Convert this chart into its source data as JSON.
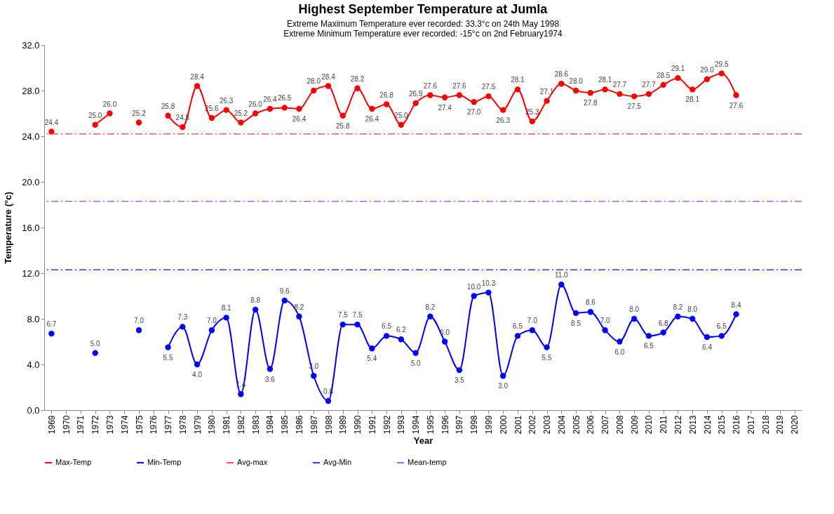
{
  "chart_data": {
    "type": "line",
    "title": "Highest September Temperature at Jumla",
    "subtitle": [
      "Extreme Maximum Temperature ever recorded: 33.3°c on 24th May  1998",
      "Extreme Minimum Temperature ever recorded: -15°c on 2nd February1974"
    ],
    "xlabel": "Year",
    "ylabel": "Temperature (°c)",
    "categories": [
      "1969",
      "1970",
      "1971",
      "1972",
      "1973",
      "1974",
      "1975",
      "1976",
      "1977",
      "1978",
      "1979",
      "1980",
      "1981",
      "1982",
      "1983",
      "1984",
      "1985",
      "1986",
      "1987",
      "1988",
      "1989",
      "1990",
      "1991",
      "1992",
      "1993",
      "1994",
      "1995",
      "1996",
      "1997",
      "1998",
      "1999",
      "2000",
      "2001",
      "2002",
      "2003",
      "2004",
      "2005",
      "2006",
      "2007",
      "2008",
      "2009",
      "2010",
      "2011",
      "2012",
      "2013",
      "2014",
      "2015",
      "2016",
      "2017",
      "2018",
      "2019",
      "2020"
    ],
    "series": [
      {
        "name": "Max-Temp",
        "color": "#ff0000",
        "values": [
          24.4,
          null,
          null,
          25.0,
          26.0,
          null,
          25.2,
          null,
          25.8,
          24.8,
          28.4,
          25.6,
          26.3,
          25.2,
          26.0,
          26.4,
          26.5,
          26.4,
          28.0,
          28.4,
          25.8,
          28.2,
          26.4,
          26.8,
          25.0,
          26.9,
          27.6,
          27.4,
          27.6,
          27.0,
          27.5,
          26.3,
          28.1,
          25.3,
          27.1,
          28.6,
          28.0,
          27.8,
          28.1,
          27.7,
          27.5,
          27.7,
          28.5,
          29.1,
          28.1,
          29.0,
          29.5,
          27.6,
          null,
          null,
          null,
          null
        ],
        "value_labels": [
          "24.4",
          null,
          null,
          "25.0",
          "26.0",
          null,
          "25.2",
          null,
          "25.8",
          "24.8",
          "28.4",
          "25.6",
          "26.3",
          "25.2",
          "26.0",
          "26.4",
          "26.5",
          "26.4",
          "28.0",
          "28.4",
          "25.8",
          "28.2",
          "26.4",
          "26.8",
          "25.0",
          "26.9",
          "27.6",
          "27.4",
          "27.6",
          "27.0",
          "27.5",
          "26.3",
          "28.1",
          "25.3",
          "27.1",
          "28.6",
          "28.0",
          "27.8",
          "28.1",
          "27.7",
          "27.5",
          "27.7",
          "28.5",
          "29.1",
          "28.1",
          "29.0",
          "29.5",
          "27.6",
          null,
          null,
          null,
          null
        ]
      },
      {
        "name": "Min-Temp",
        "color": "#0000ff",
        "values": [
          6.7,
          null,
          null,
          5.0,
          null,
          null,
          7.0,
          null,
          5.5,
          7.3,
          4.0,
          7.0,
          8.1,
          1.4,
          8.8,
          3.6,
          9.6,
          8.2,
          3.0,
          0.8,
          7.5,
          7.5,
          5.4,
          6.5,
          6.2,
          5.0,
          8.2,
          6.0,
          3.5,
          10.0,
          10.3,
          3.0,
          6.5,
          7.0,
          5.5,
          11.0,
          8.5,
          8.6,
          7.0,
          6.0,
          8.0,
          6.5,
          6.8,
          8.2,
          8.0,
          6.4,
          6.5,
          8.4,
          null,
          null,
          null,
          null
        ],
        "value_labels": [
          "6.7",
          null,
          null,
          "5.0",
          null,
          null,
          "7.0",
          null,
          "5.5",
          "7.3",
          "4.0",
          "7.0",
          "8.1",
          "1.4",
          "8.8",
          "3.6",
          "9.6",
          "8.2",
          "3.0",
          "0.8",
          "7.5",
          "7.5",
          "5.4",
          "6.5",
          "6.2",
          "5.0",
          "8.2",
          "6.0",
          "3.5",
          "10.0",
          "10.3",
          "3.0",
          "6.5",
          "7.0",
          "5.5",
          "11.0",
          "8.5",
          "8.6",
          "7.0",
          "6.0",
          "8.0",
          "6.5",
          "6.8",
          "8.2",
          "8.0",
          "6.4",
          "6.5",
          "8.4",
          null,
          null,
          null,
          null
        ]
      }
    ],
    "ref_lines": [
      {
        "axis": "y",
        "value": 24.2,
        "label": "Avg-max",
        "color": "#ff5050",
        "line_style": "dashed"
      },
      {
        "axis": "y",
        "value": 12.3,
        "label": "Avg-Min",
        "color": "#3333ff",
        "line_style": "dashed"
      },
      {
        "axis": "y",
        "value": 18.3,
        "label": "Mean-temp",
        "color": "#9966ff",
        "line_style": "dashed"
      }
    ],
    "ylim": [
      0,
      32
    ],
    "yticks": [
      {
        "value": 0,
        "label": "0.0"
      },
      {
        "value": 4,
        "label": "4.0"
      },
      {
        "value": 8,
        "label": "8.0"
      },
      {
        "value": 12,
        "label": "12.0"
      },
      {
        "value": 16,
        "label": "16.0"
      },
      {
        "value": 20,
        "label": "20.0"
      },
      {
        "value": 24,
        "label": "24.0"
      },
      {
        "value": 28,
        "label": "28.0"
      },
      {
        "value": 32,
        "label": "32.0"
      }
    ],
    "marker": "circle",
    "line_style": "solid",
    "grid": false,
    "legend": "bottom"
  }
}
